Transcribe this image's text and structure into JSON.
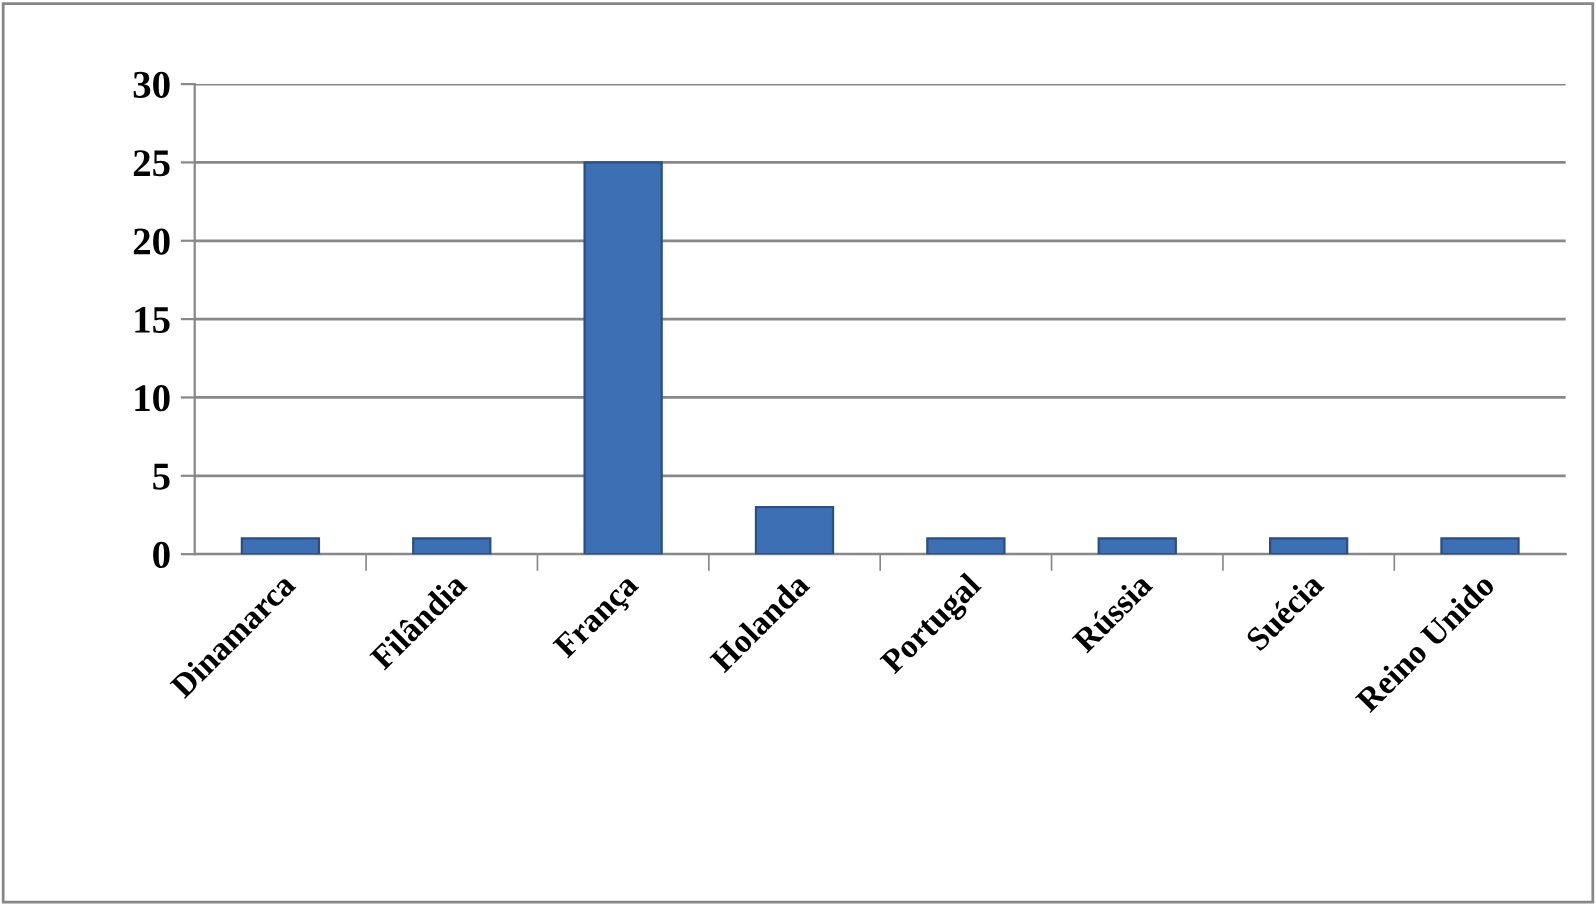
{
  "chart_data": {
    "type": "bar",
    "categories": [
      "Dinamarca",
      "Filândia",
      "França",
      "Holanda",
      "Portugal",
      "Rússia",
      "Suécia",
      "Reino Unido"
    ],
    "values": [
      1,
      1,
      25,
      3,
      1,
      1,
      1,
      1
    ],
    "color": "#3c6fb4",
    "ylim": [
      0,
      30
    ],
    "yticks": [
      0,
      5,
      10,
      15,
      20,
      25,
      30
    ],
    "grid": "y",
    "legend": false
  }
}
